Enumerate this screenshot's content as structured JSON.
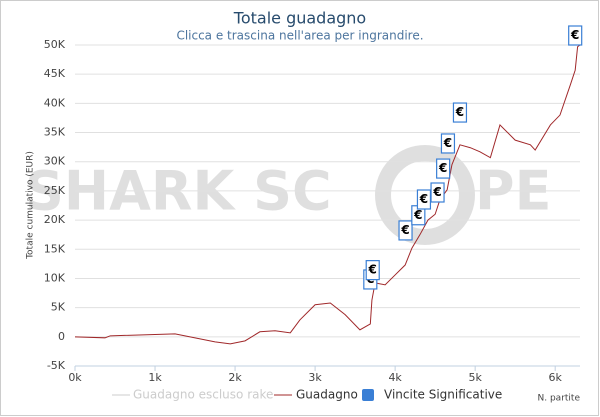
{
  "chart_data": {
    "type": "line",
    "title": "Totale guadagno",
    "subtitle": "Clicca e trascina nell'area per ingrandire.",
    "y_label": "Totale cumulativo (EUR)",
    "x_label": "N. partite",
    "watermark": [
      "SHARK SC",
      "PE"
    ],
    "x": [
      0,
      375,
      440,
      1250,
      1375,
      1750,
      1940,
      2125,
      2310,
      2500,
      2690,
      2810,
      3000,
      3190,
      3375,
      3560,
      3690,
      3710,
      3750,
      3875,
      4000,
      4125,
      4210,
      4310,
      4410,
      4500,
      4560,
      4650,
      4710,
      4810,
      4940,
      5060,
      5190,
      5310,
      5500,
      5690,
      5750,
      5940,
      6060,
      6190,
      6250,
      6280,
      6310
    ],
    "series": [
      {
        "name": "Guadagno escluso rake",
        "color": "#cccccc",
        "visible": false
      },
      {
        "name": "Guadagno",
        "color": "#a0282a",
        "visible": true,
        "values": [
          0,
          -170,
          170,
          500,
          170,
          -860,
          -1200,
          -690,
          860,
          1030,
          680,
          2900,
          5500,
          5800,
          3800,
          1200,
          2200,
          6300,
          9250,
          8900,
          10600,
          12300,
          15200,
          17500,
          20000,
          21000,
          23500,
          25200,
          29500,
          32900,
          32400,
          31700,
          30700,
          36300,
          33700,
          32900,
          32000,
          36300,
          38000,
          43200,
          45700,
          49700,
          50000
        ]
      }
    ],
    "markers": {
      "name": "Vincite Significative",
      "color": "#3a7fd5",
      "label": "€",
      "x": [
        3690,
        3720,
        4130,
        4290,
        4360,
        4530,
        4600,
        4660,
        4810,
        6250
      ],
      "y": [
        8200,
        9800,
        16600,
        19200,
        21900,
        23100,
        27200,
        31500,
        36800,
        50000
      ]
    },
    "xlim": [
      0,
      6310
    ],
    "ylim": [
      -5000,
      50000
    ],
    "xticks": [
      {
        "value": 0,
        "label": "0k"
      },
      {
        "value": 1000,
        "label": "1k"
      },
      {
        "value": 2000,
        "label": "2k"
      },
      {
        "value": 3000,
        "label": "3k"
      },
      {
        "value": 4000,
        "label": "4k"
      },
      {
        "value": 5000,
        "label": "5k"
      },
      {
        "value": 6000,
        "label": "6k"
      }
    ],
    "yticks": [
      {
        "value": -5000,
        "label": "-5K"
      },
      0,
      {
        "value": 5000,
        "label": "5K"
      },
      {
        "value": 10000,
        "label": "10K"
      },
      {
        "value": 15000,
        "label": "15K"
      },
      {
        "value": 20000,
        "label": "20K"
      },
      {
        "value": 25000,
        "label": "25K"
      },
      {
        "value": 30000,
        "label": "30K"
      },
      {
        "value": 35000,
        "label": "35K"
      },
      {
        "value": 40000,
        "label": "40K"
      },
      {
        "value": 45000,
        "label": "45K"
      },
      {
        "value": 50000,
        "label": "50K"
      }
    ],
    "grid": true
  }
}
